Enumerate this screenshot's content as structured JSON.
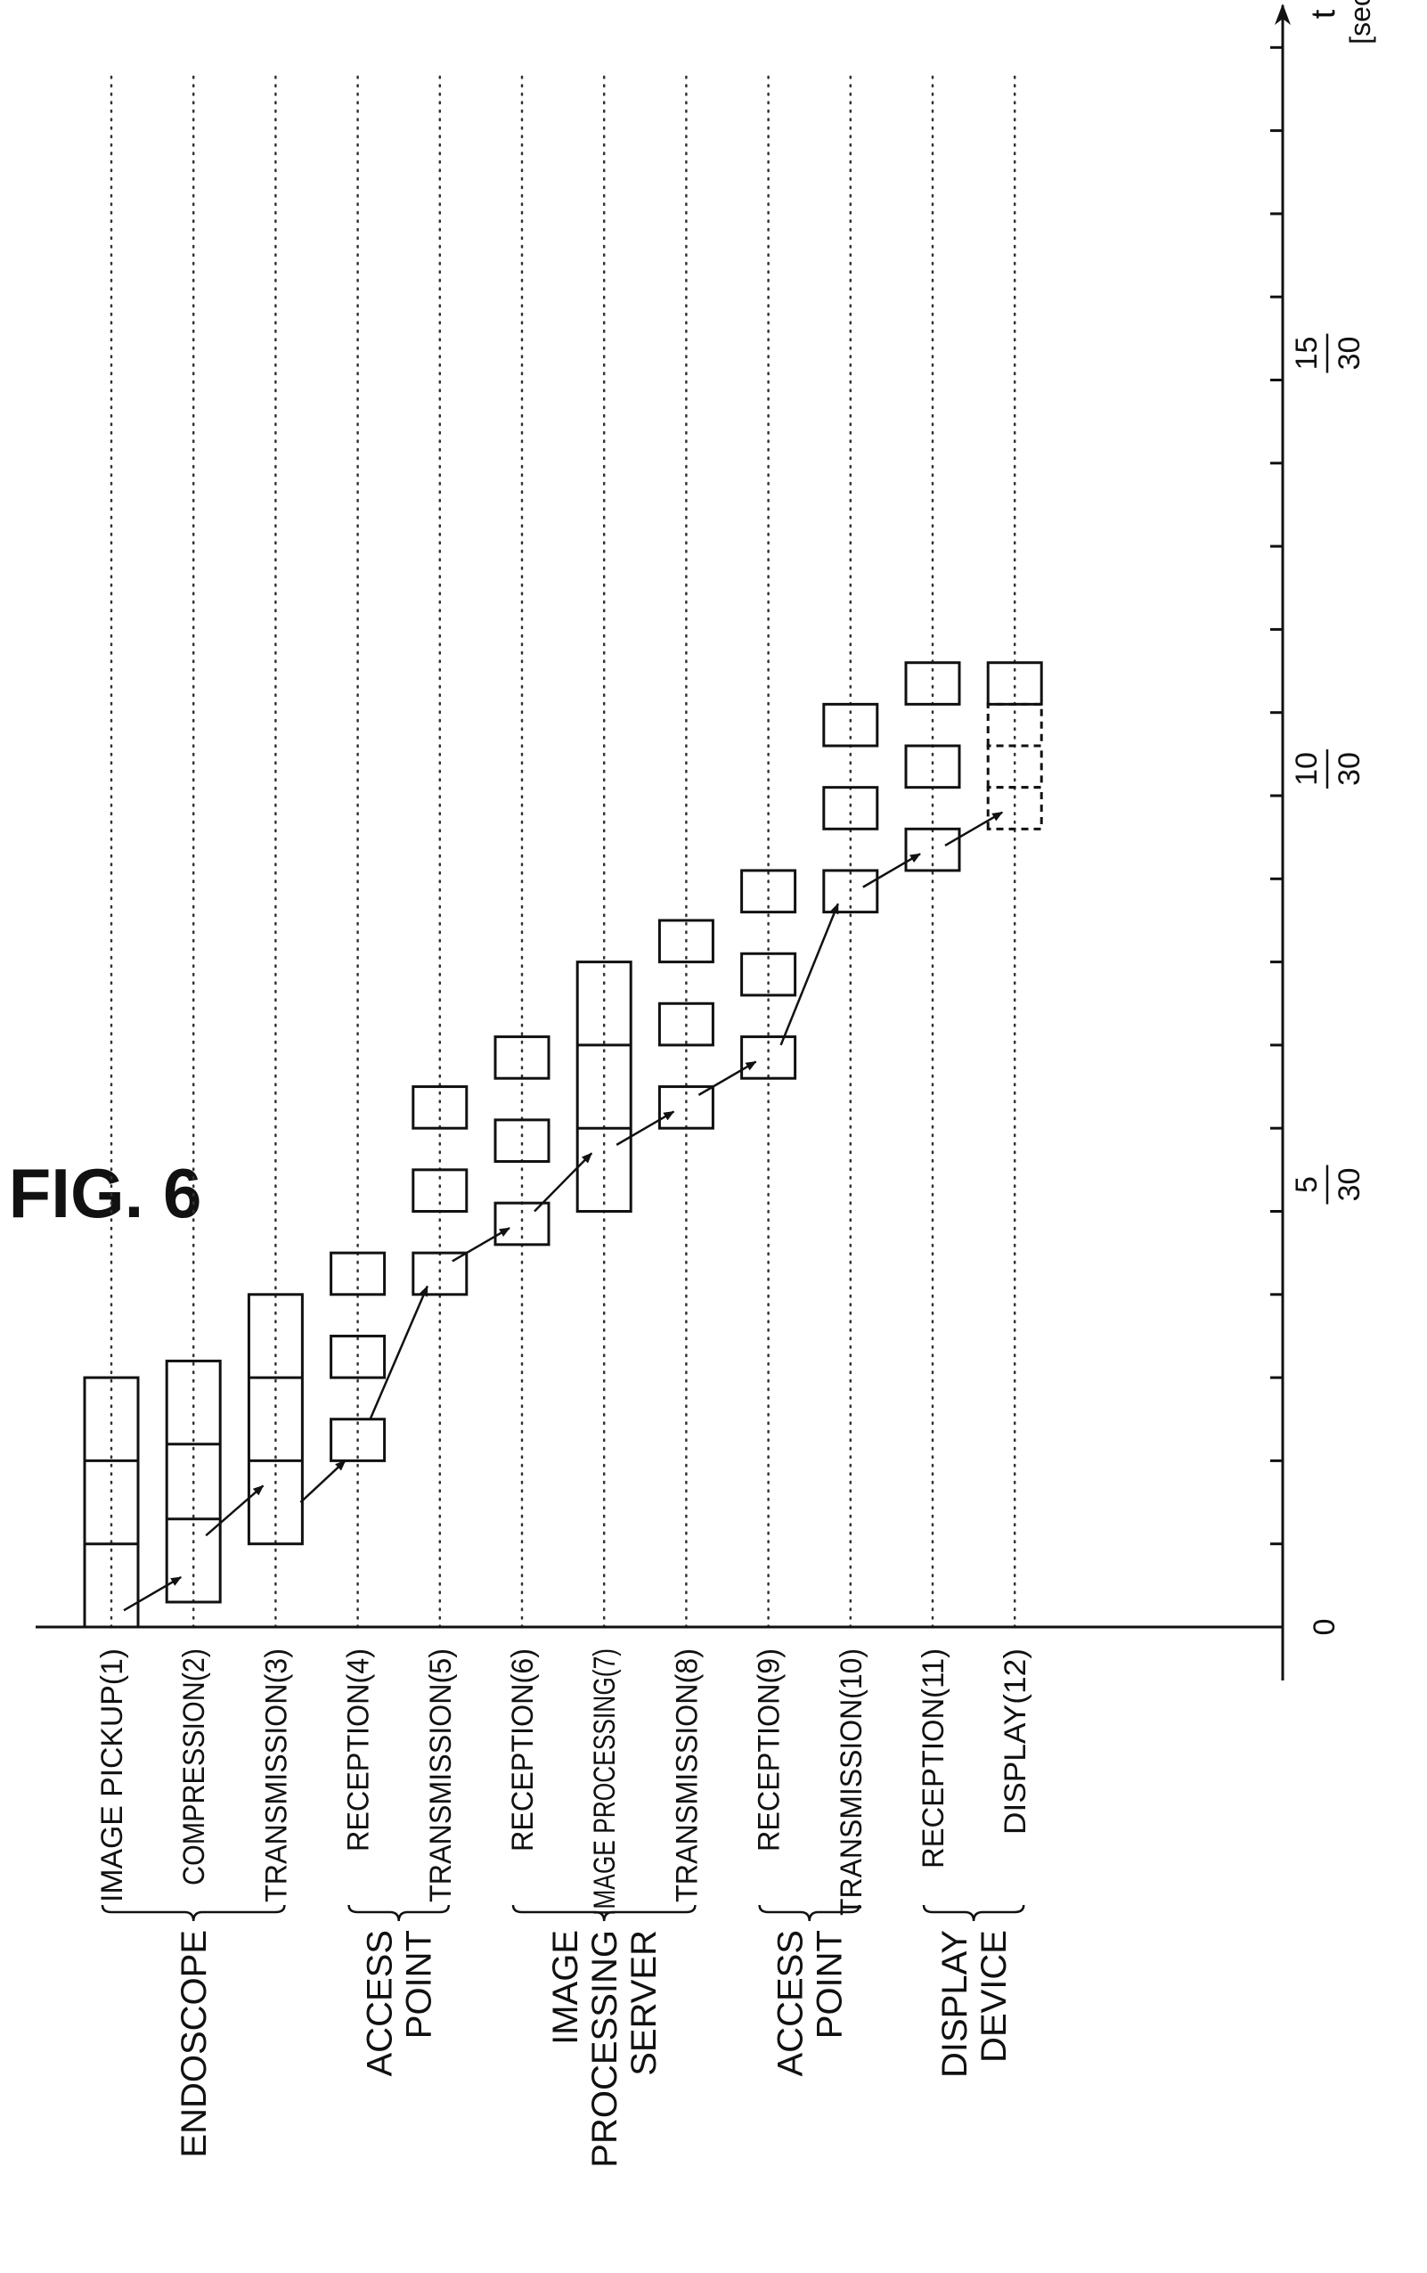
{
  "title": "FIG. 6",
  "axis": {
    "label": "t",
    "unit": "[sec]",
    "ticks": [
      {
        "num": "0",
        "den": ""
      },
      {
        "num": "5",
        "den": "30"
      },
      {
        "num": "10",
        "den": "30"
      },
      {
        "num": "15",
        "den": "30"
      }
    ]
  },
  "rows": [
    {
      "label": "IMAGE PICKUP(1)"
    },
    {
      "label": "COMPRESSION(2)"
    },
    {
      "label": "TRANSMISSION(3)"
    },
    {
      "label": "RECEPTION(4)"
    },
    {
      "label": "TRANSMISSION(5)"
    },
    {
      "label": "RECEPTION(6)"
    },
    {
      "label": "IMAGE PROCESSING(7)"
    },
    {
      "label": "TRANSMISSION(8)"
    },
    {
      "label": "RECEPTION(9)"
    },
    {
      "label": "TRANSMISSION(10)"
    },
    {
      "label": "RECEPTION(11)"
    },
    {
      "label": "DISPLAY(12)"
    }
  ],
  "groups": [
    {
      "lines": [
        "ENDOSCOPE"
      ]
    },
    {
      "lines": [
        "ACCESS",
        "POINT"
      ]
    },
    {
      "lines": [
        "IMAGE",
        "PROCESSING",
        "SERVER"
      ]
    },
    {
      "lines": [
        "ACCESS",
        "POINT"
      ]
    },
    {
      "lines": [
        "DISPLAY",
        "DEVICE"
      ]
    }
  ]
}
